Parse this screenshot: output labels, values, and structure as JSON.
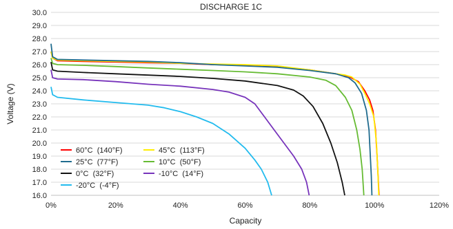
{
  "chart_data": {
    "type": "line",
    "title": "DISCHARGE 1C",
    "xlabel": "Capacity",
    "ylabel": "Voltage (V)",
    "xlim": [
      0,
      120
    ],
    "ylim": [
      16,
      30
    ],
    "x_ticks": [
      0,
      20,
      40,
      60,
      80,
      100,
      120
    ],
    "x_tick_labels": [
      "0%",
      "20%",
      "40%",
      "60%",
      "80%",
      "100%",
      "120%"
    ],
    "y_ticks": [
      16,
      17,
      18,
      19,
      20,
      21,
      22,
      23,
      24,
      25,
      26,
      27,
      28,
      29,
      30
    ],
    "y_tick_labels": [
      "16.0",
      "17.0",
      "18.0",
      "19.0",
      "20.0",
      "21.0",
      "22.0",
      "23.0",
      "24.0",
      "25.0",
      "26.0",
      "27.0",
      "28.0",
      "29.0",
      "30.0"
    ],
    "grid": "horizontal",
    "legend_position": "bottom-left",
    "series": [
      {
        "name": "60°C  (140°F)",
        "color": "#ff0000",
        "points": [
          [
            0,
            27.0
          ],
          [
            0.5,
            26.5
          ],
          [
            2,
            26.3
          ],
          [
            10,
            26.25
          ],
          [
            20,
            26.2
          ],
          [
            30,
            26.15
          ],
          [
            40,
            26.1
          ],
          [
            50,
            26.0
          ],
          [
            60,
            25.95
          ],
          [
            70,
            25.85
          ],
          [
            80,
            25.6
          ],
          [
            88,
            25.3
          ],
          [
            92,
            25.1
          ],
          [
            95,
            24.7
          ],
          [
            97,
            24.0
          ],
          [
            98.5,
            23.3
          ],
          [
            99.5,
            22.5
          ],
          [
            100.3,
            21.0
          ],
          [
            100.8,
            19.0
          ],
          [
            101.2,
            17.0
          ],
          [
            101.4,
            16.0
          ]
        ]
      },
      {
        "name": "45°C  (113°F)",
        "color": "#ffee00",
        "points": [
          [
            0,
            27.0
          ],
          [
            0.5,
            26.5
          ],
          [
            2,
            26.35
          ],
          [
            10,
            26.3
          ],
          [
            20,
            26.25
          ],
          [
            30,
            26.2
          ],
          [
            40,
            26.1
          ],
          [
            50,
            26.05
          ],
          [
            60,
            26.0
          ],
          [
            70,
            25.9
          ],
          [
            80,
            25.6
          ],
          [
            88,
            25.3
          ],
          [
            91,
            25.2
          ],
          [
            93,
            25.05
          ],
          [
            95.5,
            24.5
          ],
          [
            97,
            23.8
          ],
          [
            98.5,
            23.0
          ],
          [
            99.8,
            22.0
          ],
          [
            100.6,
            20.0
          ],
          [
            101.0,
            18.0
          ],
          [
            101.3,
            16.0
          ]
        ]
      },
      {
        "name": "25°C  (77°F)",
        "color": "#1f6b8e",
        "points": [
          [
            0,
            27.6
          ],
          [
            0.5,
            26.6
          ],
          [
            2,
            26.4
          ],
          [
            10,
            26.35
          ],
          [
            20,
            26.3
          ],
          [
            30,
            26.25
          ],
          [
            40,
            26.15
          ],
          [
            50,
            26.0
          ],
          [
            60,
            25.9
          ],
          [
            70,
            25.8
          ],
          [
            80,
            25.55
          ],
          [
            88,
            25.3
          ],
          [
            92,
            25.0
          ],
          [
            94,
            24.6
          ],
          [
            96,
            23.8
          ],
          [
            97.5,
            22.5
          ],
          [
            98.3,
            21.0
          ],
          [
            98.7,
            19.0
          ],
          [
            99.0,
            17.5
          ],
          [
            99.2,
            16.0
          ]
        ]
      },
      {
        "name": "10°C  (50°F)",
        "color": "#66bb33",
        "points": [
          [
            0,
            26.5
          ],
          [
            0.5,
            26.1
          ],
          [
            2,
            26.0
          ],
          [
            10,
            25.95
          ],
          [
            20,
            25.85
          ],
          [
            30,
            25.75
          ],
          [
            40,
            25.65
          ],
          [
            50,
            25.55
          ],
          [
            60,
            25.45
          ],
          [
            70,
            25.3
          ],
          [
            80,
            25.05
          ],
          [
            85,
            24.8
          ],
          [
            88,
            24.4
          ],
          [
            91,
            23.5
          ],
          [
            93,
            22.5
          ],
          [
            94.5,
            21.0
          ],
          [
            95.5,
            19.5
          ],
          [
            96.2,
            18.0
          ],
          [
            96.7,
            16.0
          ]
        ]
      },
      {
        "name": "0°C  (32°F)",
        "color": "#111111",
        "points": [
          [
            0,
            26.2
          ],
          [
            0.5,
            25.6
          ],
          [
            2,
            25.5
          ],
          [
            10,
            25.4
          ],
          [
            20,
            25.3
          ],
          [
            30,
            25.2
          ],
          [
            40,
            25.1
          ],
          [
            50,
            24.95
          ],
          [
            60,
            24.75
          ],
          [
            70,
            24.4
          ],
          [
            75,
            24.05
          ],
          [
            78,
            23.6
          ],
          [
            81,
            22.8
          ],
          [
            84,
            21.5
          ],
          [
            86.5,
            20.0
          ],
          [
            88.5,
            18.5
          ],
          [
            90,
            17.0
          ],
          [
            90.8,
            16.0
          ]
        ]
      },
      {
        "name": "-10°C  (14°F)",
        "color": "#7733bb",
        "points": [
          [
            0,
            25.6
          ],
          [
            0.5,
            25.0
          ],
          [
            2,
            24.9
          ],
          [
            10,
            24.85
          ],
          [
            20,
            24.7
          ],
          [
            30,
            24.5
          ],
          [
            40,
            24.35
          ],
          [
            50,
            24.1
          ],
          [
            55,
            23.9
          ],
          [
            60,
            23.5
          ],
          [
            63,
            23.0
          ],
          [
            66,
            22.0
          ],
          [
            69,
            21.0
          ],
          [
            72,
            20.0
          ],
          [
            75,
            19.0
          ],
          [
            77.5,
            18.0
          ],
          [
            79,
            17.0
          ],
          [
            79.8,
            16.0
          ]
        ]
      },
      {
        "name": "-20°C  (-4°F)",
        "color": "#22bbee",
        "points": [
          [
            0,
            24.3
          ],
          [
            0.5,
            23.7
          ],
          [
            2,
            23.5
          ],
          [
            10,
            23.3
          ],
          [
            20,
            23.1
          ],
          [
            30,
            22.9
          ],
          [
            35,
            22.7
          ],
          [
            40,
            22.4
          ],
          [
            45,
            22.0
          ],
          [
            50,
            21.5
          ],
          [
            55,
            20.7
          ],
          [
            60,
            19.6
          ],
          [
            63,
            18.7
          ],
          [
            65,
            18.0
          ],
          [
            67,
            17.0
          ],
          [
            68.2,
            16.0
          ]
        ]
      }
    ]
  }
}
